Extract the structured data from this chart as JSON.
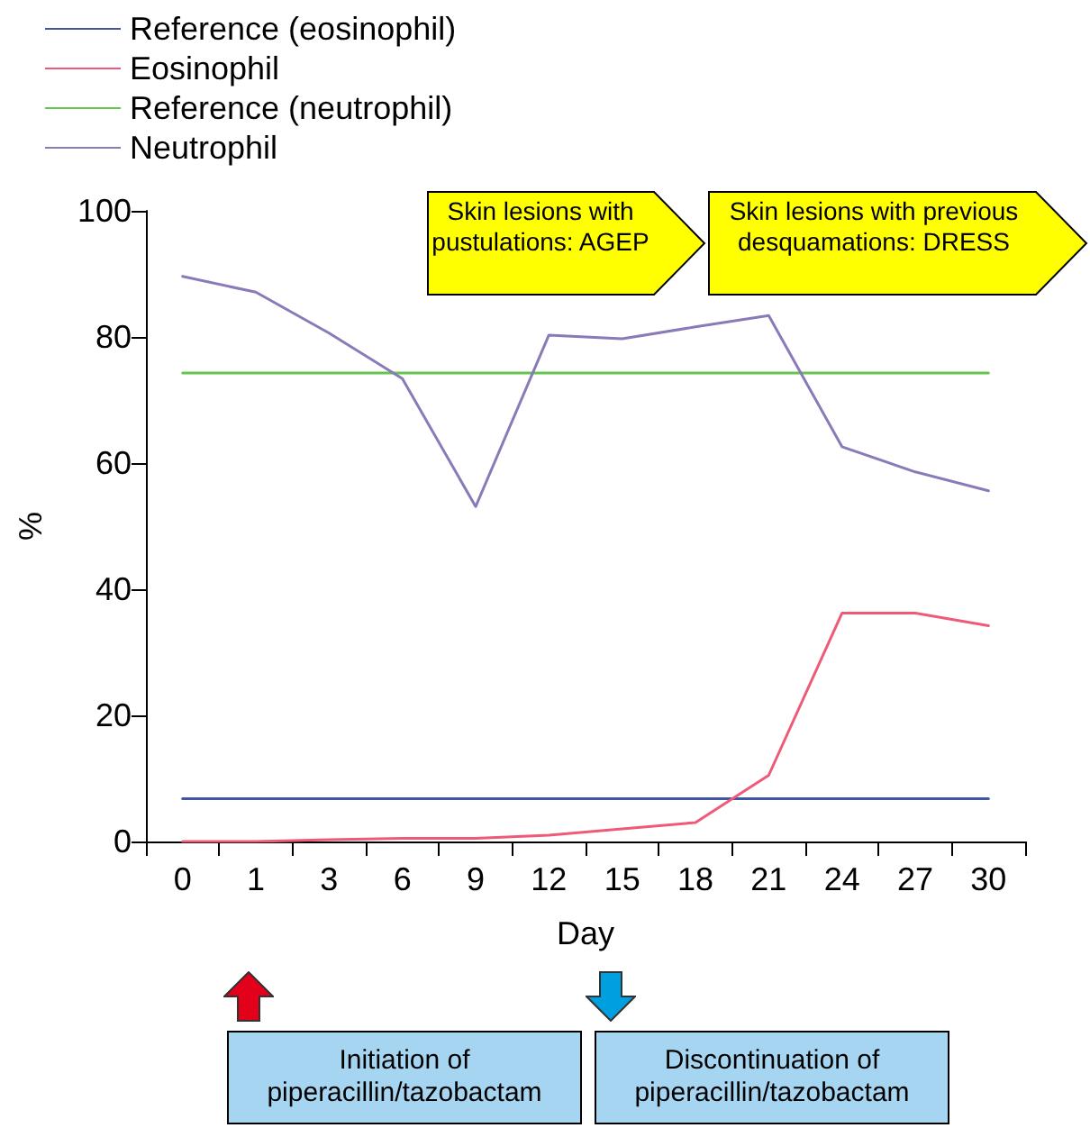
{
  "chart_data": {
    "type": "line",
    "categories": [
      "0",
      "1",
      "3",
      "6",
      "9",
      "12",
      "15",
      "18",
      "21",
      "24",
      "27",
      "30"
    ],
    "series": [
      {
        "name": "Reference (eosinophil)",
        "color": "#3f55a8",
        "values": [
          6.8,
          6.8,
          6.8,
          6.8,
          6.8,
          6.8,
          6.8,
          6.8,
          6.8,
          6.8,
          6.8,
          6.8
        ]
      },
      {
        "name": "Eosinophil",
        "color": "#ee5a78",
        "values": [
          0,
          0,
          0.3,
          0.5,
          0.5,
          1,
          2,
          3,
          10.5,
          36.2,
          36.2,
          34.2
        ]
      },
      {
        "name": "Reference (neutrophil)",
        "color": "#66c451",
        "values": [
          74.3,
          74.3,
          74.3,
          74.3,
          74.3,
          74.3,
          74.3,
          74.3,
          74.3,
          74.3,
          74.3,
          74.3
        ]
      },
      {
        "name": "Neutrophil",
        "color": "#8a7ab8",
        "values": [
          89.6,
          87.1,
          80.6,
          73.4,
          53.1,
          80.3,
          79.7,
          81.6,
          83.4,
          62.6,
          58.6,
          55.6
        ]
      }
    ],
    "xlabel": "Day",
    "ylabel": "%",
    "ylim": [
      0,
      100
    ],
    "yticks": [
      0,
      20,
      40,
      60,
      80,
      100
    ],
    "grid": false,
    "legend": "top left",
    "marker": "none",
    "line_style": "solid",
    "annotations": [
      "Skin lesions with pustulations: AGEP",
      "Skin lesions with previous desquamations: DRESS",
      "Initiation of piperacillin/tazobactam",
      "Discontinuation of piperacillin/tazobactam"
    ]
  }
}
